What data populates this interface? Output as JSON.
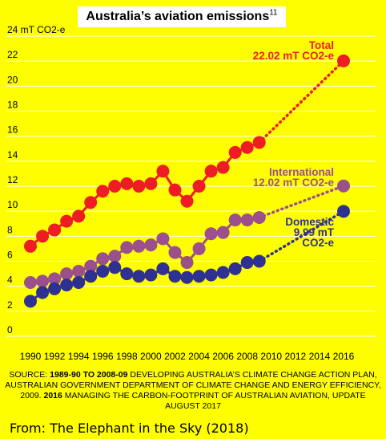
{
  "title": "Australia’s aviation emissions",
  "title_footnote": "11",
  "chart_data": {
    "type": "line",
    "title": "Australia’s aviation emissions",
    "ylabel": "mT CO2-e",
    "y_top_tick_label": "24 mT CO2-e",
    "ylim": [
      0,
      24
    ],
    "yticks": [
      0,
      2,
      4,
      6,
      8,
      10,
      12,
      14,
      16,
      18,
      20,
      22,
      24
    ],
    "xlim": [
      1990,
      2016
    ],
    "xticks": [
      1990,
      1992,
      1994,
      1996,
      1998,
      2000,
      2002,
      2004,
      2006,
      2008,
      2010,
      2012,
      2014,
      2016
    ],
    "series": [
      {
        "name": "Total",
        "label": [
          "Total",
          "22.02 mT CO2-e"
        ],
        "color": "#ee1c24",
        "x": [
          1990,
          1991,
          1992,
          1993,
          1994,
          1995,
          1996,
          1997,
          1998,
          1999,
          2000,
          2001,
          2002,
          2003,
          2004,
          2005,
          2006,
          2007,
          2008,
          2009,
          2016
        ],
        "y": [
          7.2,
          8.0,
          8.5,
          9.2,
          9.6,
          10.7,
          11.6,
          12.0,
          12.2,
          12.0,
          12.2,
          13.2,
          11.7,
          10.8,
          12.0,
          13.2,
          13.5,
          14.7,
          15.1,
          15.5,
          22.02
        ],
        "dotted_from_x": 2009
      },
      {
        "name": "International",
        "label": [
          "International",
          "12.02 mT CO2-e"
        ],
        "color": "#9b4f8c",
        "x": [
          1990,
          1991,
          1992,
          1993,
          1994,
          1995,
          1996,
          1997,
          1998,
          1999,
          2000,
          2001,
          2002,
          2003,
          2004,
          2005,
          2006,
          2007,
          2008,
          2009,
          2016
        ],
        "y": [
          4.3,
          4.4,
          4.6,
          5.0,
          5.2,
          5.6,
          6.2,
          6.4,
          7.1,
          7.2,
          7.3,
          7.8,
          6.7,
          5.9,
          7.0,
          8.2,
          8.3,
          9.3,
          9.3,
          9.5,
          12.02
        ],
        "dotted_from_x": 2009
      },
      {
        "name": "Domestic",
        "label": [
          "Domestic",
          "9.99 mT",
          "CO2-e"
        ],
        "color": "#2e3192",
        "x": [
          1990,
          1991,
          1992,
          1993,
          1994,
          1995,
          1996,
          1997,
          1998,
          1999,
          2000,
          2001,
          2002,
          2003,
          2004,
          2005,
          2006,
          2007,
          2008,
          2009,
          2016
        ],
        "y": [
          2.8,
          3.5,
          3.8,
          4.1,
          4.3,
          4.8,
          5.2,
          5.5,
          5.0,
          4.8,
          4.9,
          5.4,
          4.8,
          4.7,
          4.8,
          4.9,
          5.1,
          5.4,
          5.9,
          6.0,
          9.99
        ],
        "dotted_from_x": 2009
      }
    ]
  },
  "source": {
    "prefix": "SOURCE: ",
    "bold1": "1989-90 TO 2008-09",
    "text1": " DEVELOPING AUSTRALIA’S CLIMATE CHANGE ACTION PLAN, AUSTRALIAN GOVERNMENT DEPARTMENT OF CLIMATE CHANGE AND ENERGY EFFICIENCY, 2009. ",
    "bold2": "2016",
    "text2": " MANAGING THE CARBON-FOOTPRINT OF AUSTRALIAN AVIATION, UPDATE AUGUST 2017"
  },
  "credit": "From: The Elephant in the Sky (2018)",
  "colors": {
    "background": "#fffe00",
    "title_box": "#ffffff"
  }
}
